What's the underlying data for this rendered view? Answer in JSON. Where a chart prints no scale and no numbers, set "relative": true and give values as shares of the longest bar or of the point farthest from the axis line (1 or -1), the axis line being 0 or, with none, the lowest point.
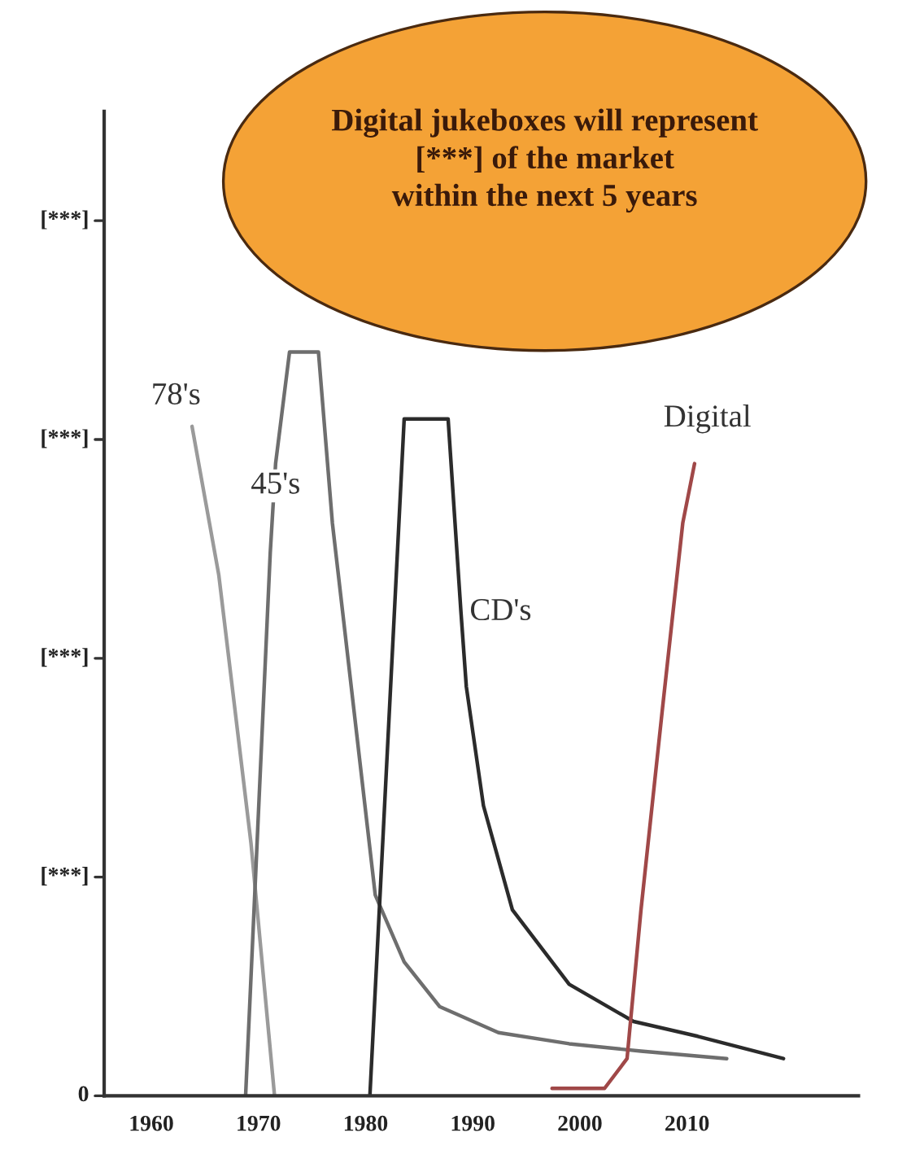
{
  "chart_data": {
    "type": "line",
    "relative": true,
    "xlim": [
      1955.6,
      2026
    ],
    "xticks": [
      1960,
      1970,
      1980,
      1990,
      2000,
      2010
    ],
    "series": [
      {
        "name": "78's",
        "color": "#9a9a9a",
        "x": [
          1963.8,
          1966.3,
          1969.3,
          1971.5
        ],
        "values": [
          0.9,
          0.7,
          0.34,
          0
        ]
      },
      {
        "name": "45's",
        "color": "#6e6e6e",
        "x": [
          1968.8,
          1971.1,
          1971.6,
          1972.9,
          1975.6,
          1976.9,
          1978.9,
          1980.9,
          1983.6,
          1986.9,
          1992.4,
          1999,
          2005.7,
          2013.7
        ],
        "values": [
          0,
          0.73,
          0.85,
          1.0,
          1.0,
          0.77,
          0.52,
          0.27,
          0.18,
          0.12,
          0.085,
          0.07,
          0.06,
          0.05
        ]
      },
      {
        "name": "CD's",
        "color": "#2b2b2b",
        "x": [
          1980.4,
          1983.6,
          1987.7,
          1988.9,
          1989.4,
          1991.0,
          1993.7,
          1999,
          2005,
          2011,
          2019
        ],
        "values": [
          0,
          0.91,
          0.91,
          0.65,
          0.55,
          0.39,
          0.25,
          0.15,
          0.1,
          0.08,
          0.05
        ]
      },
      {
        "name": "Digital",
        "color": "#a04848",
        "x": [
          1997.4,
          2002.3,
          2004.4,
          2005.7,
          2007.7,
          2009.6,
          2010.7
        ],
        "values": [
          0.01,
          0.01,
          0.05,
          0.25,
          0.52,
          0.77,
          0.85
        ]
      }
    ],
    "annotations": [
      "Digital jukeboxes will represent\n[***] of the market\nwithin the next 5 years",
      "0",
      "[***]",
      "[***]",
      "[***]",
      "[***]"
    ],
    "grid": false,
    "legend": false
  }
}
